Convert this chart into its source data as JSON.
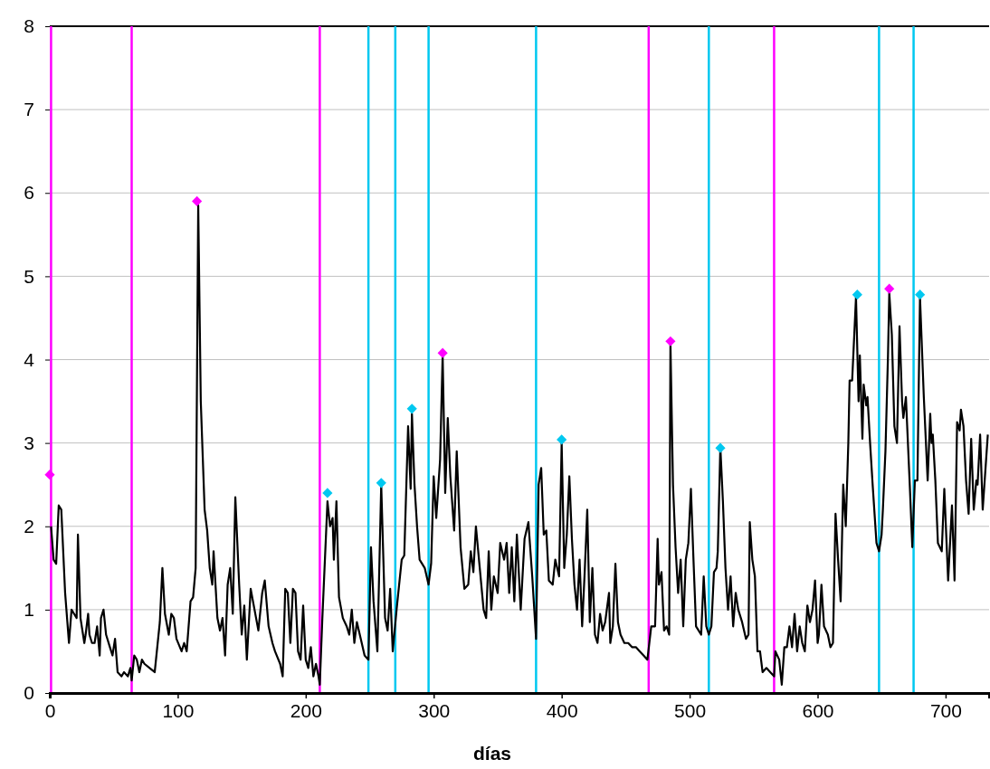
{
  "chart_data": {
    "type": "line",
    "xlabel": "días",
    "xlim": [
      0,
      734
    ],
    "ylim": [
      0,
      8
    ],
    "xticks": [
      0,
      100,
      200,
      300,
      400,
      500,
      600,
      700
    ],
    "yticks": [
      0,
      1,
      2,
      3,
      4,
      5,
      6,
      7,
      8
    ],
    "grid": "y",
    "series": [
      {
        "color": "#000000",
        "marker": "none",
        "x": [
          1,
          3,
          5,
          7,
          9,
          12,
          15,
          17,
          19,
          21,
          22,
          24,
          27,
          28,
          30,
          31,
          33,
          35,
          37,
          39,
          40,
          42,
          44,
          47,
          49,
          51,
          53,
          56,
          58,
          61,
          63,
          64,
          66,
          68,
          70,
          72,
          74,
          78,
          82,
          86,
          88,
          90,
          93,
          95,
          97,
          99,
          103,
          105,
          107,
          110,
          112,
          114,
          116,
          118,
          121,
          123,
          125,
          127,
          128,
          131,
          133,
          135,
          137,
          139,
          141,
          143,
          145,
          148,
          150,
          152,
          154,
          157,
          160,
          163,
          166,
          168,
          171,
          174,
          176,
          180,
          182,
          184,
          186,
          188,
          190,
          192,
          194,
          196,
          198,
          200,
          202,
          204,
          206,
          208,
          210,
          211,
          213,
          215,
          217,
          219,
          221,
          222,
          224,
          226,
          229,
          232,
          234,
          236,
          238,
          240,
          243,
          246,
          249,
          251,
          253,
          256,
          259,
          262,
          264,
          266,
          268,
          271,
          275,
          277,
          280,
          282,
          283,
          285,
          287,
          289,
          293,
          296,
          298,
          300,
          302,
          305,
          307,
          309,
          311,
          313,
          316,
          318,
          321,
          324,
          327,
          329,
          331,
          333,
          336,
          339,
          341,
          343,
          345,
          347,
          350,
          352,
          355,
          357,
          359,
          361,
          363,
          365,
          368,
          371,
          374,
          377,
          380,
          382,
          384,
          386,
          388,
          390,
          393,
          395,
          398,
          400,
          402,
          404,
          406,
          408,
          410,
          412,
          414,
          416,
          418,
          420,
          422,
          424,
          426,
          428,
          430,
          432,
          434,
          437,
          438,
          440,
          442,
          444,
          446,
          449,
          452,
          455,
          458,
          461,
          464,
          467,
          470,
          473,
          475,
          476,
          478,
          480,
          482,
          484,
          485,
          487,
          489,
          491,
          493,
          495,
          497,
          499,
          501,
          503,
          505,
          507,
          509,
          511,
          513,
          515,
          517,
          519,
          521,
          522,
          524,
          526,
          528,
          530,
          532,
          534,
          536,
          538,
          541,
          544,
          546,
          547,
          549,
          551,
          553,
          555,
          557,
          560,
          563,
          566,
          567,
          570,
          572,
          574,
          576,
          578,
          580,
          582,
          584,
          586,
          588,
          590,
          592,
          594,
          596,
          598,
          600,
          601,
          603,
          605,
          608,
          610,
          612,
          614,
          616,
          618,
          620,
          622,
          624,
          625,
          627,
          630,
          632,
          633,
          635,
          636,
          638,
          639,
          641,
          643,
          646,
          648,
          650,
          651,
          653,
          655,
          656,
          658,
          660,
          662,
          664,
          666,
          667,
          669,
          672,
          674,
          676,
          678,
          680,
          683,
          686,
          688,
          689,
          690,
          692,
          694,
          697,
          699,
          702,
          705,
          707,
          709,
          711,
          712,
          714,
          716,
          718,
          720,
          722,
          724,
          725,
          727,
          729,
          733
        ],
        "values": [
          2.0,
          1.6,
          1.55,
          2.25,
          2.2,
          1.2,
          0.6,
          1.0,
          0.95,
          0.9,
          1.9,
          0.9,
          0.6,
          0.7,
          0.95,
          0.7,
          0.6,
          0.6,
          0.8,
          0.45,
          0.9,
          1.0,
          0.7,
          0.55,
          0.45,
          0.65,
          0.25,
          0.2,
          0.25,
          0.2,
          0.3,
          0.15,
          0.45,
          0.4,
          0.25,
          0.4,
          0.35,
          0.3,
          0.25,
          0.85,
          1.5,
          0.95,
          0.7,
          0.95,
          0.9,
          0.65,
          0.5,
          0.6,
          0.5,
          1.1,
          1.15,
          1.5,
          5.85,
          3.5,
          2.2,
          1.95,
          1.5,
          1.3,
          1.7,
          0.9,
          0.75,
          0.9,
          0.45,
          1.3,
          1.5,
          0.95,
          2.35,
          1.3,
          0.7,
          1.05,
          0.4,
          1.25,
          1.0,
          0.75,
          1.2,
          1.35,
          0.8,
          0.6,
          0.5,
          0.35,
          0.2,
          1.25,
          1.2,
          0.6,
          1.25,
          1.2,
          0.5,
          0.4,
          1.05,
          0.4,
          0.3,
          0.55,
          0.2,
          0.35,
          0.2,
          0.1,
          0.9,
          1.6,
          2.3,
          2.0,
          2.1,
          1.6,
          2.3,
          1.15,
          0.9,
          0.8,
          0.7,
          1.0,
          0.6,
          0.85,
          0.65,
          0.45,
          0.4,
          1.75,
          1.1,
          0.5,
          2.5,
          0.9,
          0.75,
          1.25,
          0.5,
          1.0,
          1.6,
          1.65,
          3.2,
          2.45,
          3.35,
          2.5,
          2.0,
          1.6,
          1.5,
          1.3,
          1.55,
          2.6,
          2.1,
          2.8,
          4.05,
          2.4,
          3.3,
          2.6,
          1.95,
          2.9,
          1.75,
          1.25,
          1.3,
          1.7,
          1.45,
          2.0,
          1.5,
          1.0,
          0.9,
          1.7,
          1.0,
          1.4,
          1.2,
          1.8,
          1.6,
          1.8,
          1.2,
          1.75,
          1.1,
          1.9,
          1.0,
          1.85,
          2.05,
          1.4,
          0.65,
          2.5,
          2.7,
          1.9,
          1.95,
          1.35,
          1.3,
          1.6,
          1.4,
          3.0,
          1.5,
          1.9,
          2.6,
          1.85,
          1.3,
          1.0,
          1.6,
          0.8,
          1.45,
          2.2,
          0.85,
          1.5,
          0.7,
          0.6,
          0.95,
          0.75,
          0.85,
          1.2,
          0.6,
          0.8,
          1.55,
          0.85,
          0.7,
          0.6,
          0.6,
          0.55,
          0.55,
          0.5,
          0.45,
          0.4,
          0.8,
          0.8,
          1.85,
          1.3,
          1.45,
          0.75,
          0.8,
          0.7,
          4.2,
          2.5,
          1.75,
          1.2,
          1.6,
          0.8,
          1.6,
          1.8,
          2.45,
          1.6,
          0.8,
          0.75,
          0.7,
          1.4,
          0.8,
          0.7,
          0.8,
          1.45,
          1.5,
          1.7,
          2.95,
          2.3,
          1.5,
          1.0,
          1.4,
          0.8,
          1.2,
          1.0,
          0.85,
          0.65,
          0.7,
          2.05,
          1.6,
          1.4,
          0.5,
          0.5,
          0.25,
          0.3,
          0.25,
          0.2,
          0.5,
          0.4,
          0.1,
          0.55,
          0.55,
          0.8,
          0.55,
          0.95,
          0.5,
          0.8,
          0.6,
          0.5,
          1.05,
          0.85,
          1.0,
          1.35,
          0.6,
          0.7,
          1.3,
          0.8,
          0.7,
          0.55,
          0.6,
          2.15,
          1.6,
          1.1,
          2.5,
          2.0,
          3.0,
          3.75,
          3.75,
          4.75,
          3.5,
          4.05,
          3.05,
          3.7,
          3.45,
          3.55,
          3.0,
          2.5,
          1.8,
          1.7,
          1.9,
          2.2,
          2.9,
          4.05,
          4.8,
          4.3,
          3.2,
          3.0,
          4.4,
          3.5,
          3.3,
          3.55,
          2.5,
          1.75,
          2.55,
          2.55,
          4.75,
          3.55,
          2.55,
          3.35,
          3.0,
          3.1,
          2.55,
          1.8,
          1.7,
          2.45,
          1.35,
          2.25,
          1.35,
          3.25,
          3.15,
          3.4,
          3.2,
          2.55,
          2.15,
          3.05,
          2.2,
          2.55,
          2.5,
          3.1,
          2.2,
          3.1
        ]
      },
      {
        "type": "scatter",
        "color": "#ff00ff",
        "marker": "diamond",
        "x": [
          0,
          115,
          307,
          485,
          656
        ],
        "values": [
          2.62,
          5.9,
          4.08,
          4.22,
          4.85
        ]
      },
      {
        "type": "scatter",
        "color": "#00c8f0",
        "marker": "diamond",
        "x": [
          217,
          259,
          283,
          400,
          524,
          631,
          680
        ],
        "values": [
          2.4,
          2.52,
          3.41,
          3.04,
          2.94,
          4.78,
          4.78
        ]
      }
    ],
    "ref_lines": [
      {
        "axis": "x",
        "value": 1,
        "color": "#ff00ff"
      },
      {
        "axis": "x",
        "value": 64,
        "color": "#ff00ff"
      },
      {
        "axis": "x",
        "value": 211,
        "color": "#ff00ff"
      },
      {
        "axis": "x",
        "value": 468,
        "color": "#ff00ff"
      },
      {
        "axis": "x",
        "value": 566,
        "color": "#ff00ff"
      },
      {
        "axis": "x",
        "value": 249,
        "color": "#00c8f0"
      },
      {
        "axis": "x",
        "value": 270,
        "color": "#00c8f0"
      },
      {
        "axis": "x",
        "value": 296,
        "color": "#00c8f0"
      },
      {
        "axis": "x",
        "value": 380,
        "color": "#00c8f0"
      },
      {
        "axis": "x",
        "value": 515,
        "color": "#00c8f0"
      },
      {
        "axis": "x",
        "value": 648,
        "color": "#00c8f0"
      },
      {
        "axis": "x",
        "value": 675,
        "color": "#00c8f0"
      }
    ]
  }
}
